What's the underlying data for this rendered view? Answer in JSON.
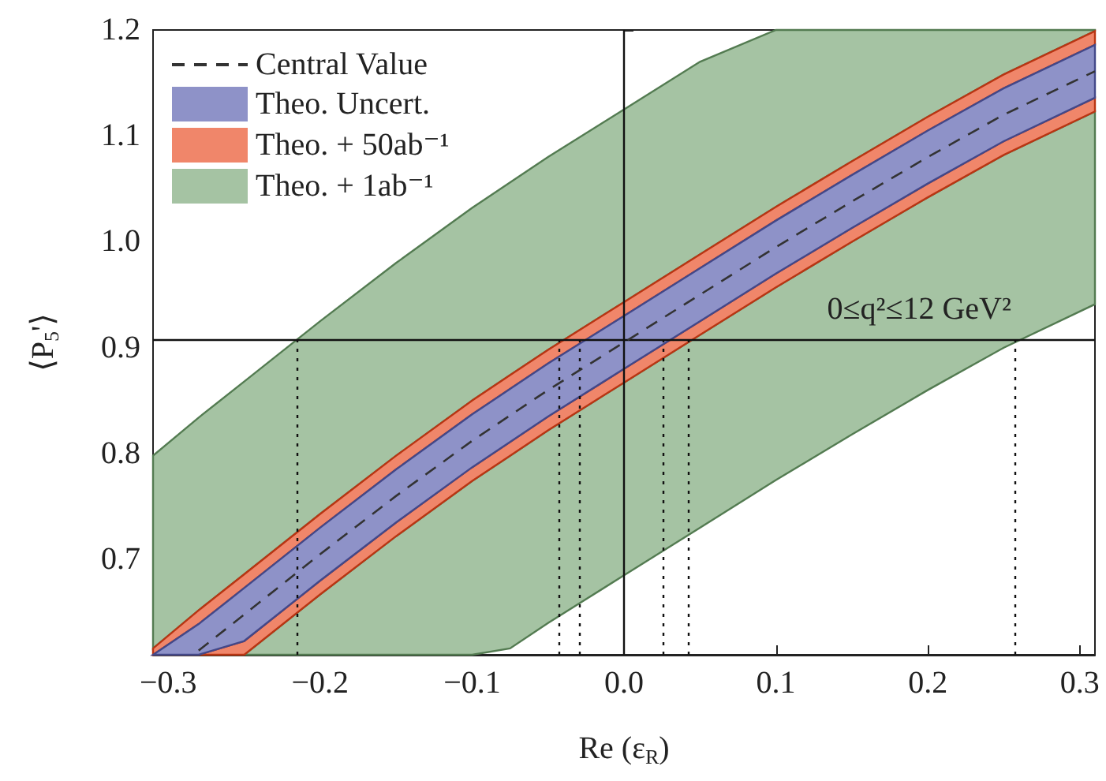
{
  "chart_data": {
    "type": "area",
    "xlabel": "Re (ε$_{R}$)",
    "ylabel": "⟨P$_{5}$'⟩",
    "x": [
      -0.31,
      -0.28,
      -0.25,
      -0.2,
      -0.15,
      -0.1,
      -0.075,
      -0.05,
      0,
      0.05,
      0.1,
      0.15,
      0.2,
      0.25,
      0.31
    ],
    "series": [
      {
        "name": "Theo. + 1ab⁻¹",
        "color": "#a5c3a3",
        "values": [
          null,
          null,
          null,
          null,
          null,
          null,
          null,
          null,
          null,
          null,
          null,
          null,
          null,
          null,
          null
        ],
        "lower": [
          0.61,
          0.61,
          0.61,
          0.61,
          0.61,
          0.61,
          0.616,
          0.64,
          0.685,
          0.73,
          0.775,
          0.818,
          0.86,
          0.9,
          0.941
        ],
        "upper": [
          0.798,
          0.834,
          0.868,
          0.925,
          0.98,
          1.032,
          1.056,
          1.08,
          1.125,
          1.17,
          1.2,
          1.2,
          1.2,
          1.2,
          1.2
        ]
      },
      {
        "name": "Theo. + 50ab⁻¹",
        "color": "#f0866a",
        "values": [
          null,
          null,
          null,
          null,
          null,
          null,
          null,
          null,
          null,
          null,
          null,
          null,
          null,
          null,
          null
        ],
        "lower": [
          0.61,
          0.61,
          0.61,
          0.667,
          0.722,
          0.774,
          0.798,
          0.822,
          0.867,
          0.912,
          0.957,
          1.0,
          1.042,
          1.082,
          1.123
        ],
        "upper": [
          0.616,
          0.652,
          0.686,
          0.743,
          0.798,
          0.85,
          0.874,
          0.898,
          0.943,
          0.988,
          1.033,
          1.076,
          1.118,
          1.158,
          1.199
        ]
      },
      {
        "name": "Theo. Uncert.",
        "color": "#8e92c8",
        "values": [
          null,
          null,
          null,
          null,
          null,
          null,
          null,
          null,
          null,
          null,
          null,
          null,
          null,
          null,
          null
        ],
        "lower": [
          0.61,
          0.61,
          0.623,
          0.68,
          0.735,
          0.787,
          0.811,
          0.835,
          0.88,
          0.925,
          0.97,
          1.013,
          1.055,
          1.095,
          1.136
        ],
        "upper": [
          0.61,
          0.639,
          0.673,
          0.73,
          0.785,
          0.837,
          0.861,
          0.885,
          0.93,
          0.975,
          1.02,
          1.063,
          1.105,
          1.145,
          1.186
        ]
      },
      {
        "name": "Central Value",
        "type": "line",
        "color": "#333333",
        "line_style": "dashed",
        "x": [
          -0.28,
          -0.25,
          -0.2,
          -0.15,
          -0.1,
          -0.075,
          -0.05,
          0,
          0.05,
          0.1,
          0.15,
          0.2,
          0.25,
          0.31
        ],
        "values": [
          0.614,
          0.648,
          0.705,
          0.76,
          0.812,
          0.836,
          0.86,
          0.905,
          0.95,
          0.995,
          1.038,
          1.08,
          1.12,
          1.161
        ]
      }
    ],
    "xlim": [
      -0.31,
      0.31
    ],
    "ylim": [
      0.61,
      1.2
    ],
    "xticks": [
      {
        "value": -0.3,
        "label": "−0.3"
      },
      {
        "value": -0.2,
        "label": "−0.2"
      },
      {
        "value": -0.1,
        "label": "−0.1"
      },
      {
        "value": 0,
        "label": "0.0"
      },
      {
        "value": 0.1,
        "label": "0.1"
      },
      {
        "value": 0.2,
        "label": "0.2"
      },
      {
        "value": 0.3,
        "label": "0.3"
      }
    ],
    "yticks": [
      0.7,
      0.8,
      0.9,
      {
        "value": 1,
        "label": "1.0"
      },
      1.1,
      1.2
    ],
    "ref_lines": [
      {
        "axis": "y",
        "value": 0.907,
        "color": "#111111",
        "line_style": "solid"
      },
      {
        "axis": "x",
        "value": 0,
        "color": "#111111",
        "line_style": "solid"
      },
      {
        "axis": "x",
        "value": -0.215,
        "color": "#111111",
        "line_style": "dotted"
      },
      {
        "axis": "x",
        "value": -0.043,
        "color": "#111111",
        "line_style": "dotted"
      },
      {
        "axis": "x",
        "value": -0.029,
        "color": "#111111",
        "line_style": "dotted"
      },
      {
        "axis": "x",
        "value": 0.026,
        "color": "#111111",
        "line_style": "dotted"
      },
      {
        "axis": "x",
        "value": 0.042,
        "color": "#111111",
        "line_style": "dotted"
      },
      {
        "axis": "x",
        "value": 0.257,
        "color": "#111111",
        "line_style": "dotted"
      }
    ],
    "annotations": [
      "0≤q²≤12 GeV²"
    ],
    "legend": "top left",
    "grid": false,
    "marker": "none"
  }
}
